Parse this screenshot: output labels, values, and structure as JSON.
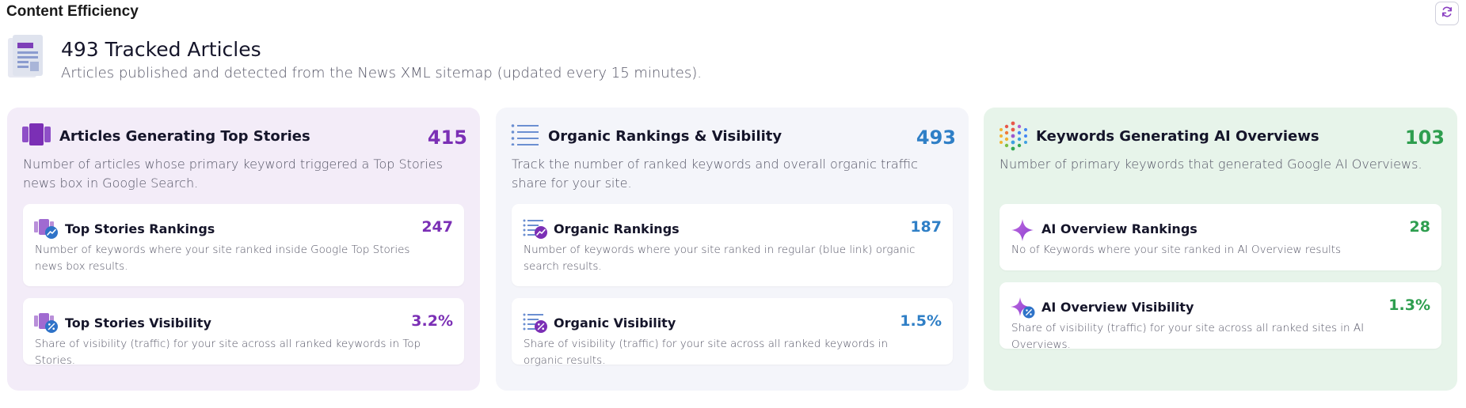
{
  "page": {
    "title": "Content Efficiency",
    "refresh_icon": "refresh-icon"
  },
  "header": {
    "title": "493 Tracked Articles",
    "subtitle": "Articles published and detected from the News XML sitemap (updated every 15 minutes).",
    "icon": "document-icon"
  },
  "colors": {
    "purple": "#7b2fb5",
    "blue": "#2f7fc6",
    "green": "#2e9e4f"
  },
  "panels": [
    {
      "title": "Articles Generating Top Stories",
      "value": "415",
      "description": "Number of articles whose primary keyword triggered a Top Stories news box in Google Search.",
      "icon": "top-stories-icon",
      "cards": [
        {
          "title": "Top Stories Rankings",
          "value": "247",
          "description": "Number of keywords where your site ranked inside Google Top Stories news box results.",
          "icon": "top-stories-rankings-icon"
        },
        {
          "title": "Top Stories Visibility",
          "value": "3.2%",
          "description": "Share of visibility (traffic) for your site across all ranked keywords in Top Stories.",
          "icon": "top-stories-visibility-icon"
        }
      ]
    },
    {
      "title": "Organic Rankings & Visibility",
      "value": "493",
      "description": "Track the number of ranked keywords and overall organic traffic share for your site.",
      "icon": "list-icon",
      "cards": [
        {
          "title": "Organic Rankings",
          "value": "187",
          "description": "Number of keywords where your site ranked in regular (blue link) organic search results.",
          "icon": "organic-rankings-icon"
        },
        {
          "title": "Organic Visibility",
          "value": "1.5%",
          "description": "Share of visibility (traffic) for your site across all ranked keywords in organic results.",
          "icon": "organic-visibility-icon"
        }
      ]
    },
    {
      "title": "Keywords Generating AI Overviews",
      "value": "103",
      "description": "Number of primary keywords that generated Google AI Overviews.",
      "icon": "ai-dots-icon",
      "cards": [
        {
          "title": "AI Overview Rankings",
          "value": "28",
          "description": "No of Keywords where your site ranked in AI Overview results",
          "icon": "sparkle-icon"
        },
        {
          "title": "AI Overview Visibility",
          "value": "1.3%",
          "description": "Share of visibility (traffic) for your site across all ranked sites in AI Overviews.",
          "icon": "sparkle-visibility-icon"
        }
      ]
    }
  ]
}
